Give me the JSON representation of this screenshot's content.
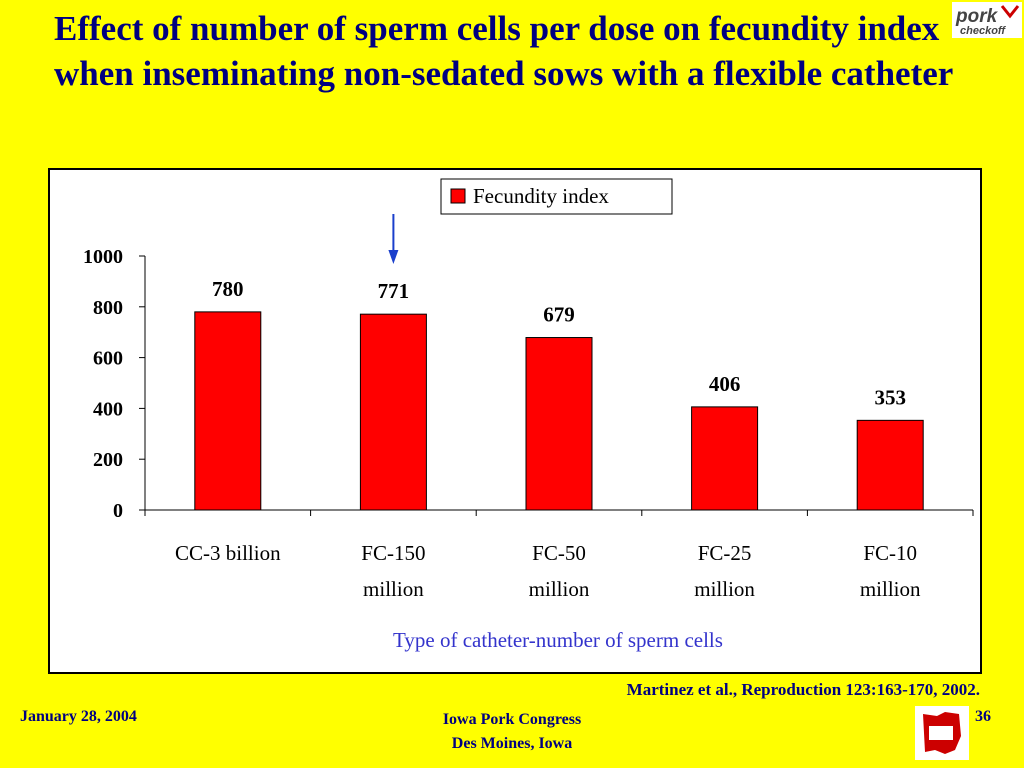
{
  "slide": {
    "title": "Effect of number of sperm cells per dose on fecundity index when inseminating non-sedated sows with a flexible catheter",
    "citation": "Martinez et al., Reproduction 123:163-170, 2002.",
    "footer_date": "January 28, 2004",
    "footer_event_line1": "Iowa Pork Congress",
    "footer_event_line2": "Des Moines, Iowa",
    "page_number": "36",
    "logo_text_top": "pork",
    "logo_text_bottom": "checkoff"
  },
  "colors": {
    "background": "#FFFF00",
    "title": "#000080",
    "bar": "#FF0000",
    "xlabel": "#3333CC",
    "arrow": "#1A3FCC"
  },
  "chart_data": {
    "type": "bar",
    "categories": [
      "CC-3 billion",
      "FC-150 million",
      "FC-50 million",
      "FC-25 million",
      "FC-10 million"
    ],
    "category_lines": [
      [
        "CC-3 billion"
      ],
      [
        "FC-150",
        "million"
      ],
      [
        "FC-50",
        "million"
      ],
      [
        "FC-25",
        "million"
      ],
      [
        "FC-10",
        "million"
      ]
    ],
    "series": [
      {
        "name": "Fecundity index",
        "values": [
          780,
          771,
          679,
          406,
          353
        ]
      }
    ],
    "data_labels": [
      "780",
      "771",
      "679",
      "406",
      "353"
    ],
    "xlabel": "Type of catheter-number of sperm cells",
    "ylabel": "",
    "ylim": [
      0,
      1000
    ],
    "yticks": [
      0,
      200,
      400,
      600,
      800,
      1000
    ],
    "legend_position": "top-right",
    "grid": false,
    "annotation": {
      "type": "arrow",
      "category_index": 1
    }
  }
}
